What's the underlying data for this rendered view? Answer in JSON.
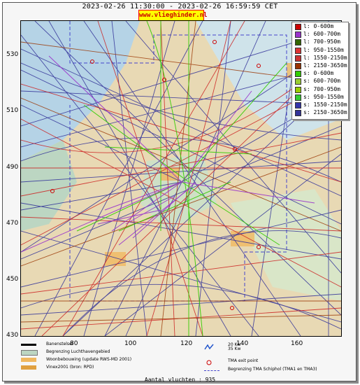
{
  "header": {
    "title": "2023-02-26 11:30:00 - 2023-02-26 16:59:59 CET",
    "site": "www.vlieghinder.nl"
  },
  "axes": {
    "y_ticks": [
      "530",
      "510",
      "490",
      "470",
      "450",
      "430"
    ],
    "x_ticks": [
      "80",
      "100",
      "120",
      "140",
      "160"
    ]
  },
  "legend": [
    {
      "label": "l: 0-600m",
      "color": "#cc0000"
    },
    {
      "label": "l: 600-700m",
      "color": "#9933cc"
    },
    {
      "label": "l: 700-950m",
      "color": "#336600"
    },
    {
      "label": "l: 950-1550m",
      "color": "#dd3333"
    },
    {
      "label": "l: 1550-2150m",
      "color": "#cc3333"
    },
    {
      "label": "l: 2150-3650m",
      "color": "#993300"
    },
    {
      "label": "s: 0-600m",
      "color": "#33cc00"
    },
    {
      "label": "s: 600-700m",
      "color": "#99cc33"
    },
    {
      "label": "s: 700-950m",
      "color": "#99cc00"
    },
    {
      "label": "s: 950-1550m",
      "color": "#33cc33"
    },
    {
      "label": "s: 1550-2150m",
      "color": "#3333aa"
    },
    {
      "label": "s: 2150-3650m",
      "color": "#333399"
    }
  ],
  "bottom_legend": {
    "runway_system": "Banenstelsel",
    "airport_boundary": "Begrenzing Luchthavengebied",
    "residential": "Woonbebouwing (update RWS-MD 2001)",
    "vinex": "Vinex2001 (bron: RPD)",
    "wind": "20 Kw\n35 Kw",
    "wind_line1": "20 Kw",
    "wind_line2": "35 Kw",
    "tma_exit": "TMA exit point",
    "tma_boundary": "Begrenzing TMA Schiphol  (TMA1 en TMA3)",
    "scale_start": "60"
  },
  "footer": {
    "flights": "Aantal vluchten : 935"
  }
}
